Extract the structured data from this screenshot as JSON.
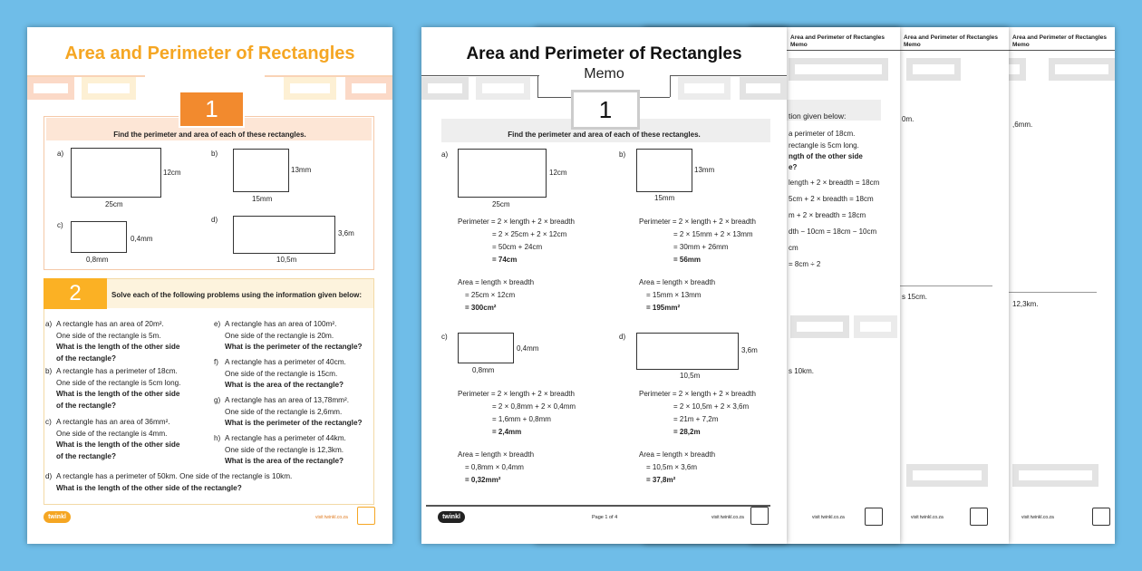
{
  "worksheet": {
    "title": "Area and Perimeter of Rectangles",
    "section1": {
      "number": "1",
      "instruction": "Find the perimeter and area of each of these rectangles.",
      "items": [
        {
          "label": "a)",
          "width": "25cm",
          "height": "12cm"
        },
        {
          "label": "b)",
          "width": "15mm",
          "height": "13mm"
        },
        {
          "label": "c)",
          "width": "0,8mm",
          "height": "0,4mm"
        },
        {
          "label": "d)",
          "width": "10,5m",
          "height": "3,6m"
        }
      ]
    },
    "section2": {
      "number": "2",
      "instruction": "Solve each of the following problems using the information given below:",
      "problems": [
        {
          "label": "a)",
          "lines": [
            "A rectangle has an area of 20m².",
            "One side of the rectangle is 5m.",
            "What is the length of the other side",
            "of the rectangle?"
          ]
        },
        {
          "label": "b)",
          "lines": [
            "A rectangle has a perimeter of 18cm.",
            "One side of the rectangle is 5cm long.",
            "What is the length of the other side",
            "of the rectangle?"
          ]
        },
        {
          "label": "c)",
          "lines": [
            "A rectangle has an area of 36mm².",
            "One side of the rectangle is 4mm.",
            "What is the length of the other side",
            "of the rectangle?"
          ]
        },
        {
          "label": "e)",
          "lines": [
            "A rectangle has an area of 100m².",
            "One side of the rectangle is 20m.",
            "What is the perimeter of the rectangle?"
          ]
        },
        {
          "label": "f)",
          "lines": [
            "A rectangle has a perimeter of 40cm.",
            "One side of the rectangle is 15cm.",
            "What is the area of the rectangle?"
          ]
        },
        {
          "label": "g)",
          "lines": [
            "A rectangle has an area of 13,78mm².",
            "One side of the rectangle is 2,6mm.",
            "What is the perimeter of the rectangle?"
          ]
        },
        {
          "label": "h)",
          "lines": [
            "A rectangle has a perimeter of 44km.",
            "One side of the rectangle is 12,3km.",
            "What is the area of the rectangle?"
          ]
        },
        {
          "label": "d)",
          "lines": [
            "A rectangle has a perimeter of 50km. One side of the rectangle is 10km.",
            "What is the length of the other side of the rectangle?"
          ]
        }
      ]
    },
    "footer": {
      "logo": "twinkl",
      "url": "visit twinkl.co.za"
    }
  },
  "memo": {
    "title": "Area and Perimeter of Rectangles",
    "subtitle": "Memo",
    "number": "1",
    "instruction": "Find the perimeter and area of each of these rectangles.",
    "items": [
      {
        "label": "a)",
        "width": "25cm",
        "height": "12cm",
        "perimeter": [
          "Perimeter = 2 × length + 2 × breadth",
          "= 2 × 25cm + 2 × 12cm",
          "= 50cm + 24cm",
          "= 74cm"
        ],
        "area": [
          "Area = length × breadth",
          "= 25cm × 12cm",
          "= 300cm²"
        ]
      },
      {
        "label": "b)",
        "width": "15mm",
        "height": "13mm",
        "perimeter": [
          "Perimeter = 2 × length + 2 × breadth",
          "= 2 × 15mm + 2 × 13mm",
          "= 30mm + 26mm",
          "= 56mm"
        ],
        "area": [
          "Area = length × breadth",
          "= 15mm × 13mm",
          "= 195mm²"
        ]
      },
      {
        "label": "c)",
        "width": "0,8mm",
        "height": "0,4mm",
        "perimeter": [
          "Perimeter = 2 × length + 2 × breadth",
          "= 2 × 0,8mm + 2 × 0,4mm",
          "= 1,6mm + 0,8mm",
          "= 2,4mm"
        ],
        "area": [
          "Area = length × breadth",
          "= 0,8mm × 0,4mm",
          "= 0,32mm²"
        ]
      },
      {
        "label": "d)",
        "width": "10,5m",
        "height": "3,6m",
        "perimeter": [
          "Perimeter = 2 × length + 2 × breadth",
          "= 2 × 10,5m + 2 × 3,6m",
          "= 21m + 7,2m",
          "= 28,2m"
        ],
        "area": [
          "Area = length × breadth",
          "= 10,5m × 3,6m",
          "= 37,8m²"
        ]
      }
    ],
    "footer": {
      "logo": "twinkl",
      "page": "Page 1 of 4",
      "url": "visit twinkl.co.za"
    }
  },
  "back_pages": {
    "header": "Area and Perimeter of Rectangles Memo",
    "page2": [
      "tion given below:",
      "a perimeter of 18cm.",
      "rectangle is 5cm long.",
      "ngth of the other side",
      "e?",
      "length + 2 × breadth = 18cm",
      "5cm + 2 × breadth = 18cm",
      "m + 2 × breadth = 18cm",
      "dth − 10cm = 18cm − 10cm",
      "cm",
      "= 8cm ÷ 2",
      "s 10km."
    ],
    "page3": [
      "0m.",
      "s 15cm."
    ],
    "page4": [
      ",6mm.",
      "12,3km."
    ],
    "url": "visit twinkl.co.za"
  },
  "colors": {
    "orange": "#f28a2e",
    "yellow": "#fbb124",
    "grey": "#e3e3e3"
  }
}
